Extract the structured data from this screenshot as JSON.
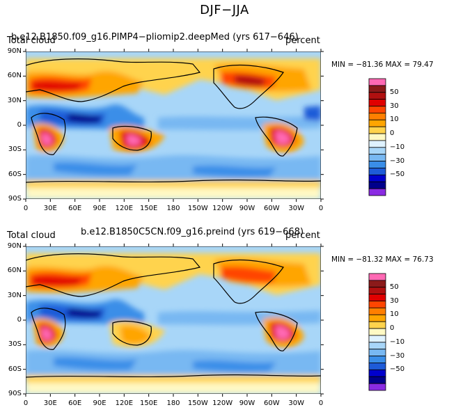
{
  "title": "DJF−JJA",
  "panels": [
    {
      "left_title": "Total cloud",
      "center_title": "b.e12.B1850.f09_g16.PIMP4−pliomip2.deepMed (yrs 617−646)",
      "right_title": "percent",
      "min_max": "MIN = −81.36  MAX =  79.47"
    },
    {
      "left_title": "Total cloud",
      "center_title": "b.e12.B1850C5CN.f09_g16.preind (yrs 619−668)",
      "right_title": "percent",
      "min_max": "MIN = −81.32  MAX =  76.73"
    }
  ],
  "lat_labels": [
    "90N",
    "60N",
    "30N",
    "0",
    "30S",
    "60S",
    "90S"
  ],
  "lon_labels": [
    "0",
    "30E",
    "60E",
    "90E",
    "120E",
    "150E",
    "180",
    "150W",
    "120W",
    "90W",
    "60W",
    "30W",
    "0"
  ],
  "colorbar": {
    "colors": [
      "#8a2be2",
      "#00008b",
      "#0000cd",
      "#1e5bd8",
      "#3a8ee8",
      "#78b8f2",
      "#a8d6f8",
      "#dff2ff",
      "#fff9c4",
      "#ffd34d",
      "#ffa500",
      "#ff7f00",
      "#ff4500",
      "#e00000",
      "#b01010",
      "#8b1a1a",
      "#ff69b4"
    ],
    "labels": [
      "−50",
      "−30",
      "−10",
      "0",
      "10",
      "30",
      "50"
    ]
  }
}
